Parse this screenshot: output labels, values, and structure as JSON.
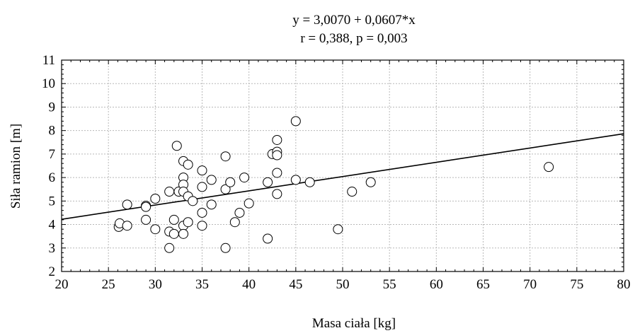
{
  "chart_data": {
    "type": "scatter",
    "title": "y = 3,0070 + 0,0607*x",
    "subtitle": "r = 0,388, p = 0,003",
    "xlabel": "Masa ciała [kg]",
    "ylabel": "Siła ramion [m]",
    "xlim": [
      20,
      80
    ],
    "ylim": [
      2,
      11
    ],
    "xticks": [
      20,
      25,
      30,
      35,
      40,
      45,
      50,
      55,
      60,
      65,
      70,
      75,
      80
    ],
    "yticks": [
      2,
      3,
      4,
      5,
      6,
      7,
      8,
      9,
      10,
      11
    ],
    "grid": true,
    "fit_line": {
      "intercept": 3.007,
      "slope": 0.0607
    },
    "points": [
      {
        "x": 26.1,
        "y": 3.9
      },
      {
        "x": 26.2,
        "y": 4.05
      },
      {
        "x": 27,
        "y": 4.85
      },
      {
        "x": 27,
        "y": 3.95
      },
      {
        "x": 29,
        "y": 4.8
      },
      {
        "x": 29,
        "y": 4.75
      },
      {
        "x": 29,
        "y": 4.2
      },
      {
        "x": 30,
        "y": 5.1
      },
      {
        "x": 30,
        "y": 3.8
      },
      {
        "x": 31.5,
        "y": 5.4
      },
      {
        "x": 31.5,
        "y": 3.7
      },
      {
        "x": 31.5,
        "y": 3.0
      },
      {
        "x": 32,
        "y": 4.2
      },
      {
        "x": 32,
        "y": 3.6
      },
      {
        "x": 32.3,
        "y": 7.35
      },
      {
        "x": 32.5,
        "y": 5.4
      },
      {
        "x": 33,
        "y": 6.7
      },
      {
        "x": 33,
        "y": 6.0
      },
      {
        "x": 33,
        "y": 5.7
      },
      {
        "x": 33,
        "y": 5.4
      },
      {
        "x": 33,
        "y": 3.95
      },
      {
        "x": 33,
        "y": 3.6
      },
      {
        "x": 33.5,
        "y": 6.55
      },
      {
        "x": 33.5,
        "y": 5.2
      },
      {
        "x": 33.5,
        "y": 4.1
      },
      {
        "x": 34,
        "y": 5.0
      },
      {
        "x": 35,
        "y": 6.3
      },
      {
        "x": 35,
        "y": 5.6
      },
      {
        "x": 35,
        "y": 4.5
      },
      {
        "x": 35,
        "y": 3.95
      },
      {
        "x": 36,
        "y": 5.9
      },
      {
        "x": 36,
        "y": 4.85
      },
      {
        "x": 37.5,
        "y": 6.9
      },
      {
        "x": 37.5,
        "y": 5.5
      },
      {
        "x": 37.5,
        "y": 3.0
      },
      {
        "x": 38,
        "y": 5.8
      },
      {
        "x": 38.5,
        "y": 4.1
      },
      {
        "x": 39,
        "y": 4.5
      },
      {
        "x": 39.5,
        "y": 6.0
      },
      {
        "x": 40,
        "y": 4.9
      },
      {
        "x": 42,
        "y": 5.8
      },
      {
        "x": 42,
        "y": 3.4
      },
      {
        "x": 42.5,
        "y": 7.0
      },
      {
        "x": 43,
        "y": 7.6
      },
      {
        "x": 43,
        "y": 7.1
      },
      {
        "x": 43,
        "y": 6.95
      },
      {
        "x": 43,
        "y": 6.2
      },
      {
        "x": 43,
        "y": 5.3
      },
      {
        "x": 45,
        "y": 8.4
      },
      {
        "x": 45,
        "y": 5.9
      },
      {
        "x": 46.5,
        "y": 5.8
      },
      {
        "x": 49.5,
        "y": 3.8
      },
      {
        "x": 51,
        "y": 5.4
      },
      {
        "x": 53,
        "y": 5.8
      },
      {
        "x": 72,
        "y": 6.45
      }
    ]
  }
}
